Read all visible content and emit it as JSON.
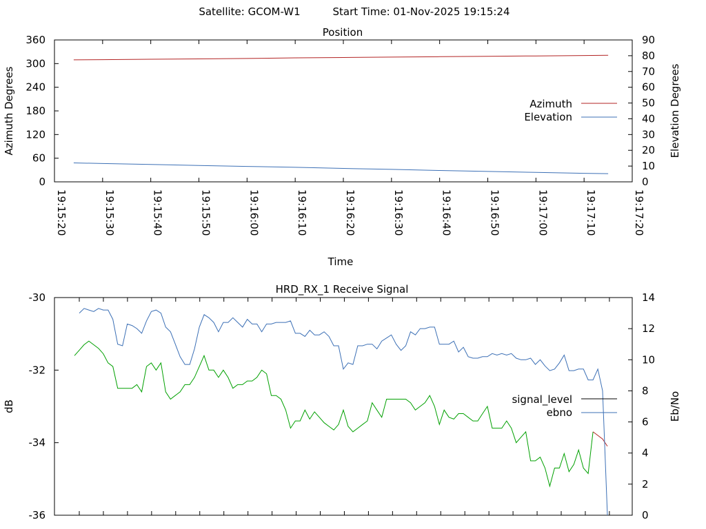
{
  "header": {
    "satellite_label": "Satellite: GCOM-W1",
    "start_label": "Start Time: 01-Nov-2025 19:15:24"
  },
  "colors": {
    "azimuth": "#b22222",
    "elevation": "#3b6fb5",
    "signal_level": "#00a000",
    "signal_level_legend": "#000000",
    "ebno": "#3b6fb5",
    "signal_tail": "#b22222"
  },
  "chart_data": [
    {
      "type": "line",
      "title": "Position",
      "xlabel": "Time",
      "ylabel": "Azimuth Degrees",
      "y2label": "Elevation Degrees",
      "x_tick_labels": [
        "19:15:20",
        "19:15:30",
        "19:15:40",
        "19:15:50",
        "19:16:00",
        "19:16:10",
        "19:16:20",
        "19:16:30",
        "19:16:40",
        "19:16:50",
        "19:17:00",
        "19:17:10",
        "19:17:20"
      ],
      "xlim": [
        0,
        120
      ],
      "ylim": [
        0,
        360
      ],
      "y_ticks": [
        0,
        60,
        120,
        180,
        240,
        300,
        360
      ],
      "y2lim": [
        0,
        90
      ],
      "y2_ticks": [
        0,
        10,
        20,
        30,
        40,
        50,
        60,
        70,
        80,
        90
      ],
      "legend_position": "center-right",
      "series": [
        {
          "name": "Azimuth",
          "axis": "y",
          "x": [
            4,
            10,
            20,
            30,
            40,
            50,
            60,
            70,
            80,
            90,
            100,
            110,
            115
          ],
          "values": [
            309.5,
            310,
            311,
            312,
            313,
            314.5,
            315.5,
            316.5,
            317.5,
            318.5,
            319.5,
            320.5,
            321
          ]
        },
        {
          "name": "Elevation",
          "axis": "y2",
          "x": [
            4,
            10,
            20,
            30,
            40,
            50,
            60,
            70,
            80,
            90,
            100,
            110,
            115
          ],
          "values": [
            12,
            11.6,
            11,
            10.4,
            9.8,
            9.2,
            8.5,
            7.9,
            7.2,
            6.6,
            6,
            5.4,
            5.2
          ]
        }
      ]
    },
    {
      "type": "line",
      "title": "HRD_RX_1 Receive Signal",
      "xlabel": "",
      "ylabel": "dB",
      "y2label": "Eb/No",
      "ylim": [
        -36,
        -30
      ],
      "y_ticks": [
        -36,
        -34,
        -32,
        -30
      ],
      "y2lim": [
        0,
        14
      ],
      "y2_ticks": [
        0,
        2,
        4,
        6,
        8,
        10,
        12,
        14
      ],
      "x_tick_count": 23,
      "legend_position": "center-right",
      "series": [
        {
          "name": "signal_level",
          "axis": "y",
          "values": [
            -31.6,
            -31.45,
            -31.3,
            -31.2,
            -31.3,
            -31.4,
            -31.55,
            -31.8,
            -31.9,
            -32.5,
            -32.5,
            -32.5,
            -32.5,
            -32.4,
            -32.6,
            -31.9,
            -31.8,
            -32.0,
            -31.8,
            -32.6,
            -32.8,
            -32.7,
            -32.6,
            -32.4,
            -32.4,
            -32.2,
            -31.9,
            -31.6,
            -32.0,
            -32.0,
            -32.2,
            -32.0,
            -32.2,
            -32.5,
            -32.4,
            -32.4,
            -32.3,
            -32.3,
            -32.2,
            -32.0,
            -32.1,
            -32.7,
            -32.7,
            -32.8,
            -33.1,
            -33.6,
            -33.4,
            -33.4,
            -33.1,
            -33.35,
            -33.15,
            -33.3,
            -33.45,
            -33.55,
            -33.65,
            -33.5,
            -33.1,
            -33.55,
            -33.7,
            -33.6,
            -33.5,
            -33.4,
            -32.9,
            -33.1,
            -33.3,
            -32.8,
            -32.8,
            -32.8,
            -32.8,
            -32.8,
            -32.9,
            -33.1,
            -33.0,
            -32.9,
            -32.7,
            -33.0,
            -33.5,
            -33.1,
            -33.3,
            -33.35,
            -33.2,
            -33.2,
            -33.3,
            -33.4,
            -33.4,
            -33.2,
            -33.0,
            -33.6,
            -33.6,
            -33.6,
            -33.4,
            -33.6,
            -34.0,
            -33.85,
            -33.7,
            -34.5,
            -34.5,
            -34.4,
            -34.7,
            -35.2,
            -34.7,
            -34.7,
            -34.3,
            -34.8,
            -34.6,
            -34.2,
            -34.7,
            -34.85,
            -33.7,
            -33.8,
            -33.9,
            -34.1
          ]
        },
        {
          "name": "ebno",
          "axis": "y2",
          "values": [
            13.0,
            13.3,
            13.2,
            13.1,
            13.3,
            13.2,
            13.2,
            12.6,
            11.0,
            10.9,
            12.3,
            12.2,
            12.0,
            11.7,
            12.5,
            13.1,
            13.2,
            13.0,
            12.1,
            11.8,
            11.0,
            10.2,
            9.7,
            9.7,
            10.7,
            12.1,
            12.9,
            12.7,
            12.4,
            11.8,
            12.4,
            12.4,
            12.7,
            12.4,
            12.1,
            12.6,
            12.3,
            12.3,
            11.8,
            12.3,
            12.3,
            12.4,
            12.4,
            12.4,
            12.5,
            11.7,
            11.7,
            11.5,
            11.9,
            11.6,
            11.6,
            11.8,
            11.5,
            10.9,
            10.9,
            9.4,
            9.8,
            9.7,
            10.9,
            10.9,
            11.0,
            11.0,
            10.7,
            11.2,
            11.4,
            11.6,
            11.0,
            10.6,
            10.9,
            11.8,
            11.6,
            12.0,
            12.0,
            12.1,
            12.1,
            11.0,
            11.0,
            11.0,
            11.2,
            10.5,
            10.8,
            10.2,
            10.1,
            10.1,
            10.2,
            10.2,
            10.4,
            10.3,
            10.4,
            10.3,
            10.4,
            10.1,
            10.0,
            10.0,
            10.1,
            9.7,
            10.0,
            9.6,
            9.3,
            9.4,
            9.8,
            10.3,
            9.3,
            9.3,
            9.4,
            9.4,
            8.7,
            8.7,
            9.4,
            8.0,
            0.0
          ]
        }
      ]
    }
  ]
}
